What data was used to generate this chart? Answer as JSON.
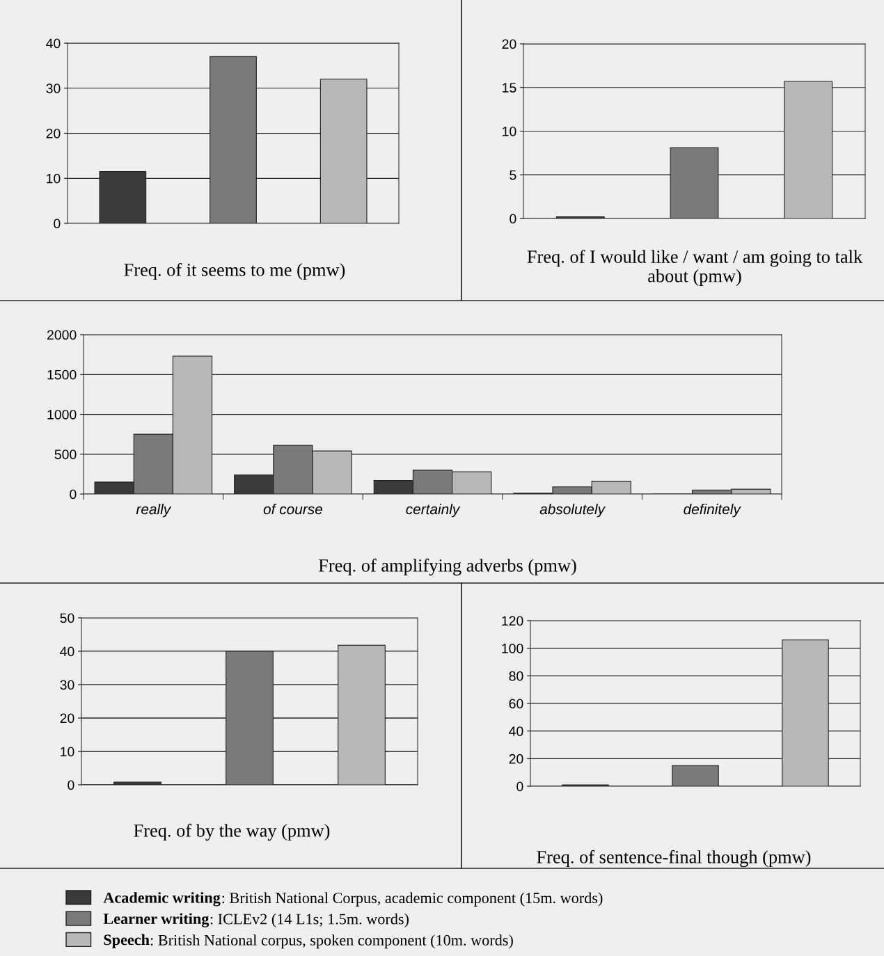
{
  "chart_data": [
    {
      "type": "bar",
      "xlabel": "Freq. of it seems to me (pmw)",
      "categories": [
        null,
        null,
        null
      ],
      "series": [
        {
          "name": "Academic writing",
          "color": "#3a3a3a",
          "values": [
            11.5,
            null,
            null
          ]
        },
        {
          "name": "Learner writing",
          "color": "#7a7a7a",
          "values": [
            null,
            37,
            null
          ]
        },
        {
          "name": "Speech",
          "color": "#b8b8b8",
          "values": [
            null,
            null,
            32
          ]
        }
      ],
      "ylim": [
        0,
        40
      ],
      "yticks": [
        0,
        10,
        20,
        30,
        40
      ],
      "grid": "y",
      "legend": "bottom"
    },
    {
      "type": "bar",
      "xlabel": "Freq. of I would like / want / am going to talk about (pmw)",
      "categories": [
        null,
        null,
        null
      ],
      "series": [
        {
          "color": "#3a3a3a",
          "values": [
            0.2,
            null,
            null
          ]
        },
        {
          "color": "#7a7a7a",
          "values": [
            null,
            8.1,
            null
          ]
        },
        {
          "color": "#b8b8b8",
          "values": [
            null,
            null,
            15.7
          ]
        }
      ],
      "ylim": [
        0,
        20
      ],
      "yticks": [
        0,
        5,
        10,
        15,
        20
      ],
      "grid": "y"
    },
    {
      "type": "bar",
      "xlabel": "Freq. of amplifying adverbs (pmw)",
      "categories": [
        "really",
        "of course",
        "certainly",
        "absolutely",
        "definitely"
      ],
      "series": [
        {
          "color": "#3a3a3a",
          "values": [
            150,
            240,
            170,
            10,
            0
          ]
        },
        {
          "color": "#7a7a7a",
          "values": [
            750,
            610,
            300,
            90,
            50
          ]
        },
        {
          "color": "#b8b8b8",
          "values": [
            1730,
            540,
            280,
            160,
            60
          ]
        }
      ],
      "ylim": [
        0,
        2000
      ],
      "yticks": [
        0,
        500,
        1000,
        1500,
        2000
      ],
      "grid": "y"
    },
    {
      "type": "bar",
      "xlabel": "Freq. of by the way (pmw)",
      "categories": [
        null,
        null,
        null
      ],
      "series": [
        {
          "color": "#3a3a3a",
          "values": [
            0.8,
            null,
            null
          ]
        },
        {
          "color": "#7a7a7a",
          "values": [
            null,
            40,
            null
          ]
        },
        {
          "color": "#b8b8b8",
          "values": [
            null,
            null,
            41.8
          ]
        }
      ],
      "ylim": [
        0,
        50
      ],
      "yticks": [
        0,
        10,
        20,
        30,
        40,
        50
      ],
      "grid": "y"
    },
    {
      "type": "bar",
      "xlabel": "Freq. of sentence-final though (pmw)",
      "categories": [
        null,
        null,
        null
      ],
      "series": [
        {
          "color": "#3a3a3a",
          "values": [
            1,
            null,
            null
          ]
        },
        {
          "color": "#7a7a7a",
          "values": [
            null,
            15,
            null
          ]
        },
        {
          "color": "#b8b8b8",
          "values": [
            null,
            null,
            106
          ]
        }
      ],
      "ylim": [
        0,
        120
      ],
      "yticks": [
        0,
        20,
        40,
        60,
        80,
        100,
        120
      ],
      "grid": "y"
    },
    {
      "type": "other",
      "annotations": [
        ": British National Corpus, academic component (15m. words)",
        ": ICLEv2 (14 L1s; 1.5m. words)",
        ": British National corpus, spoken component (10m. words)"
      ]
    }
  ]
}
